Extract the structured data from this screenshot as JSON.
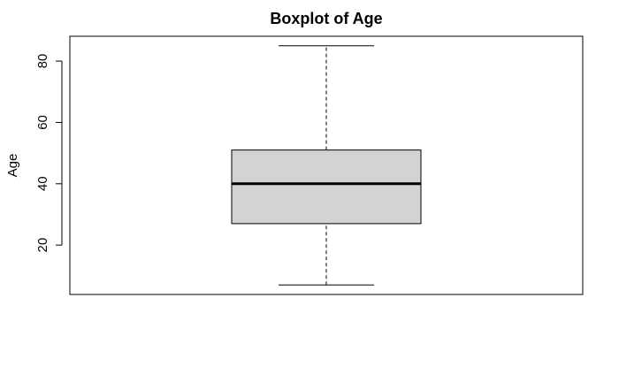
{
  "chart_data": {
    "type": "boxplot",
    "title": "Boxplot of Age",
    "xlabel": "",
    "ylabel": "Age",
    "ylim": [
      3.9,
      88.1
    ],
    "yticks": [
      20,
      40,
      60,
      80
    ],
    "box": {
      "min": 7,
      "q1": 27,
      "median": 40,
      "q3": 51,
      "max": 85
    },
    "box_fill": "#d3d3d3",
    "line_color": "#000000",
    "grid": false
  }
}
